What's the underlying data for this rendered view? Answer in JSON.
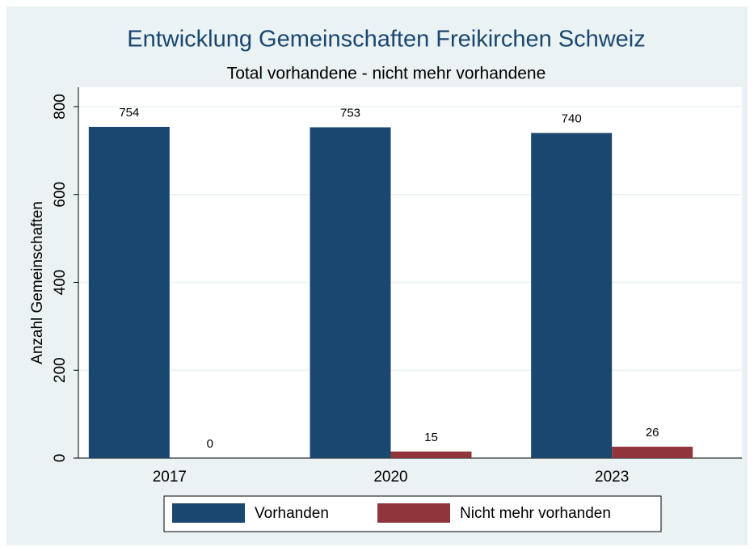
{
  "chart_data": {
    "type": "bar",
    "title": "Entwicklung Gemeinschaften Freikirchen Schweiz",
    "subtitle": "Total vorhandene - nicht mehr vorhandene",
    "y_label": "Anzahl Gemeinschaften",
    "categories": [
      "2017",
      "2020",
      "2023"
    ],
    "series": [
      {
        "name": "Vorhanden",
        "color": "#1a476f",
        "values": [
          754,
          753,
          740
        ]
      },
      {
        "name": "Nicht mehr vorhanden",
        "color": "#90353b",
        "values": [
          0,
          15,
          26
        ]
      }
    ],
    "ylim": [
      0,
      800
    ],
    "yticks": [
      0,
      200,
      400,
      600,
      800
    ],
    "grid": true,
    "legend": "bottom"
  }
}
